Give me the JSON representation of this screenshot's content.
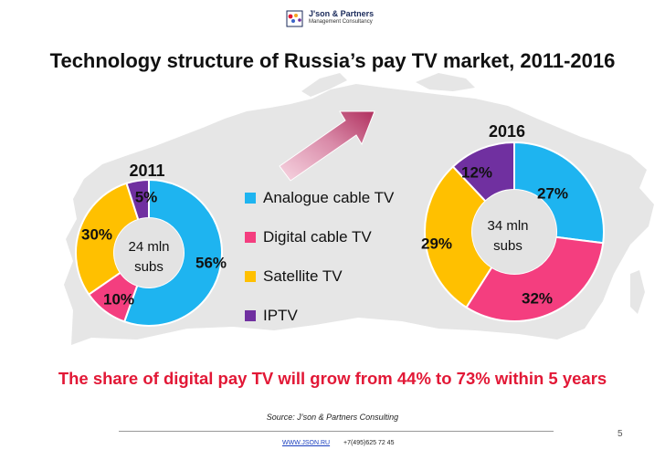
{
  "header": {
    "logo_name": "J'son & Partners",
    "logo_tagline": "Management Consultancy"
  },
  "title": "Technology structure of Russia’s pay TV market, 2011-2016",
  "chart_data": [
    {
      "type": "pie",
      "donut": true,
      "title": "2011",
      "center_label": [
        "24 mln",
        "subs"
      ],
      "categories": [
        "Analogue cable TV",
        "Digital cable TV",
        "Satellite TV",
        "IPTV"
      ],
      "values": [
        56,
        10,
        30,
        5
      ],
      "value_labels": [
        "56%",
        "10%",
        "30%",
        "5%"
      ],
      "colors": [
        "#1eb4f0",
        "#f43e7f",
        "#ffc000",
        "#7030a0"
      ],
      "legend": "center, between charts"
    },
    {
      "type": "pie",
      "donut": true,
      "title": "2016",
      "center_label": [
        "34 mln",
        "subs"
      ],
      "categories": [
        "Analogue cable TV",
        "Digital cable TV",
        "Satellite TV",
        "IPTV"
      ],
      "values": [
        27,
        32,
        29,
        12
      ],
      "value_labels": [
        "27%",
        "32%",
        "29%",
        "12%"
      ],
      "colors": [
        "#1eb4f0",
        "#f43e7f",
        "#ffc000",
        "#7030a0"
      ],
      "legend": "center, between charts"
    }
  ],
  "legend": {
    "items": [
      {
        "label": "Analogue cable TV",
        "color": "#1eb4f0"
      },
      {
        "label": "Digital cable TV",
        "color": "#f43e7f"
      },
      {
        "label": "Satellite TV",
        "color": "#ffc000"
      },
      {
        "label": "IPTV",
        "color": "#7030a0"
      }
    ]
  },
  "headline": "The share of digital pay TV will grow from 44% to 73% within 5 years",
  "source": "Source: J’son & Partners Consulting",
  "footer": {
    "page_number": "5",
    "website": "WWW.JSON.RU",
    "phone": "+7(495)625 72 45"
  },
  "colors": {
    "analogue": "#1eb4f0",
    "digital": "#f43e7f",
    "satellite": "#ffc000",
    "iptv": "#7030a0",
    "headline": "#e21836",
    "map": "#e6e6e6"
  }
}
